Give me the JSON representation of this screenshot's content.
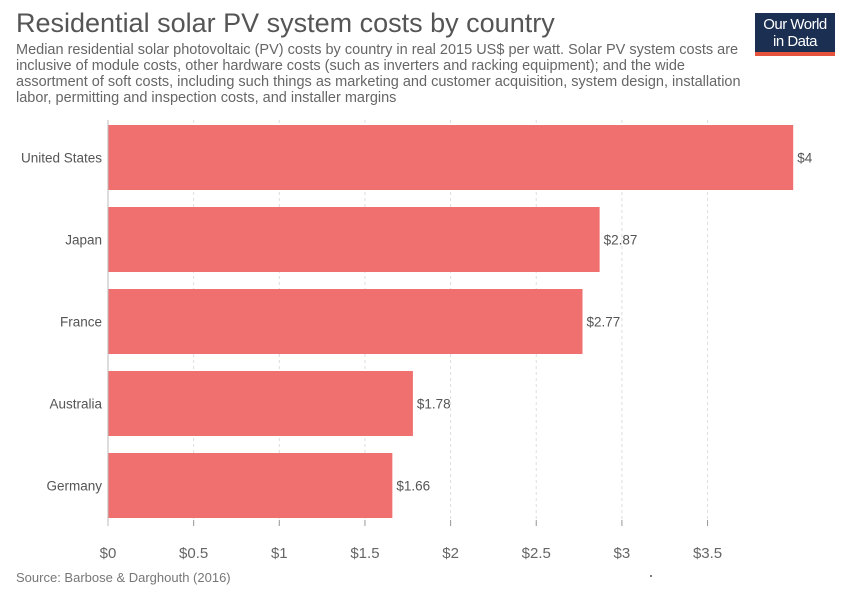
{
  "header": {
    "title": "Residential solar PV system costs by country",
    "subtitle": "Median residential solar photovoltaic (PV) costs by country in real 2015 US$ per watt. Solar PV system costs are inclusive of module costs, other hardware costs (such as inverters and racking equipment); and the wide assortment of soft costs, including such things as marketing and customer acquisition, system design, installation labor, permitting and inspection costs, and installer margins"
  },
  "logo": {
    "line1": "Our World",
    "line2": "in Data",
    "bg_color": "#1a2f52",
    "accent_color": "#e5533d"
  },
  "footer": {
    "source": "Source: Barbose & Darghouth (2016)"
  },
  "chart_data": {
    "type": "bar",
    "orientation": "horizontal",
    "categories": [
      "United States",
      "Japan",
      "France",
      "Australia",
      "Germany"
    ],
    "values": [
      4,
      2.87,
      2.77,
      1.78,
      1.66
    ],
    "value_labels": [
      "$4",
      "$2.87",
      "$2.77",
      "$1.78",
      "$1.66"
    ],
    "x_ticks": [
      0,
      0.5,
      1,
      1.5,
      2,
      2.5,
      3,
      3.5
    ],
    "x_tick_labels": [
      "$0",
      "$0.5",
      "$1",
      "$1.5",
      "$2",
      "$2.5",
      "$3",
      "$3.5"
    ],
    "xlim": [
      0,
      4
    ],
    "grid": true,
    "bar_color": "#f07070"
  }
}
